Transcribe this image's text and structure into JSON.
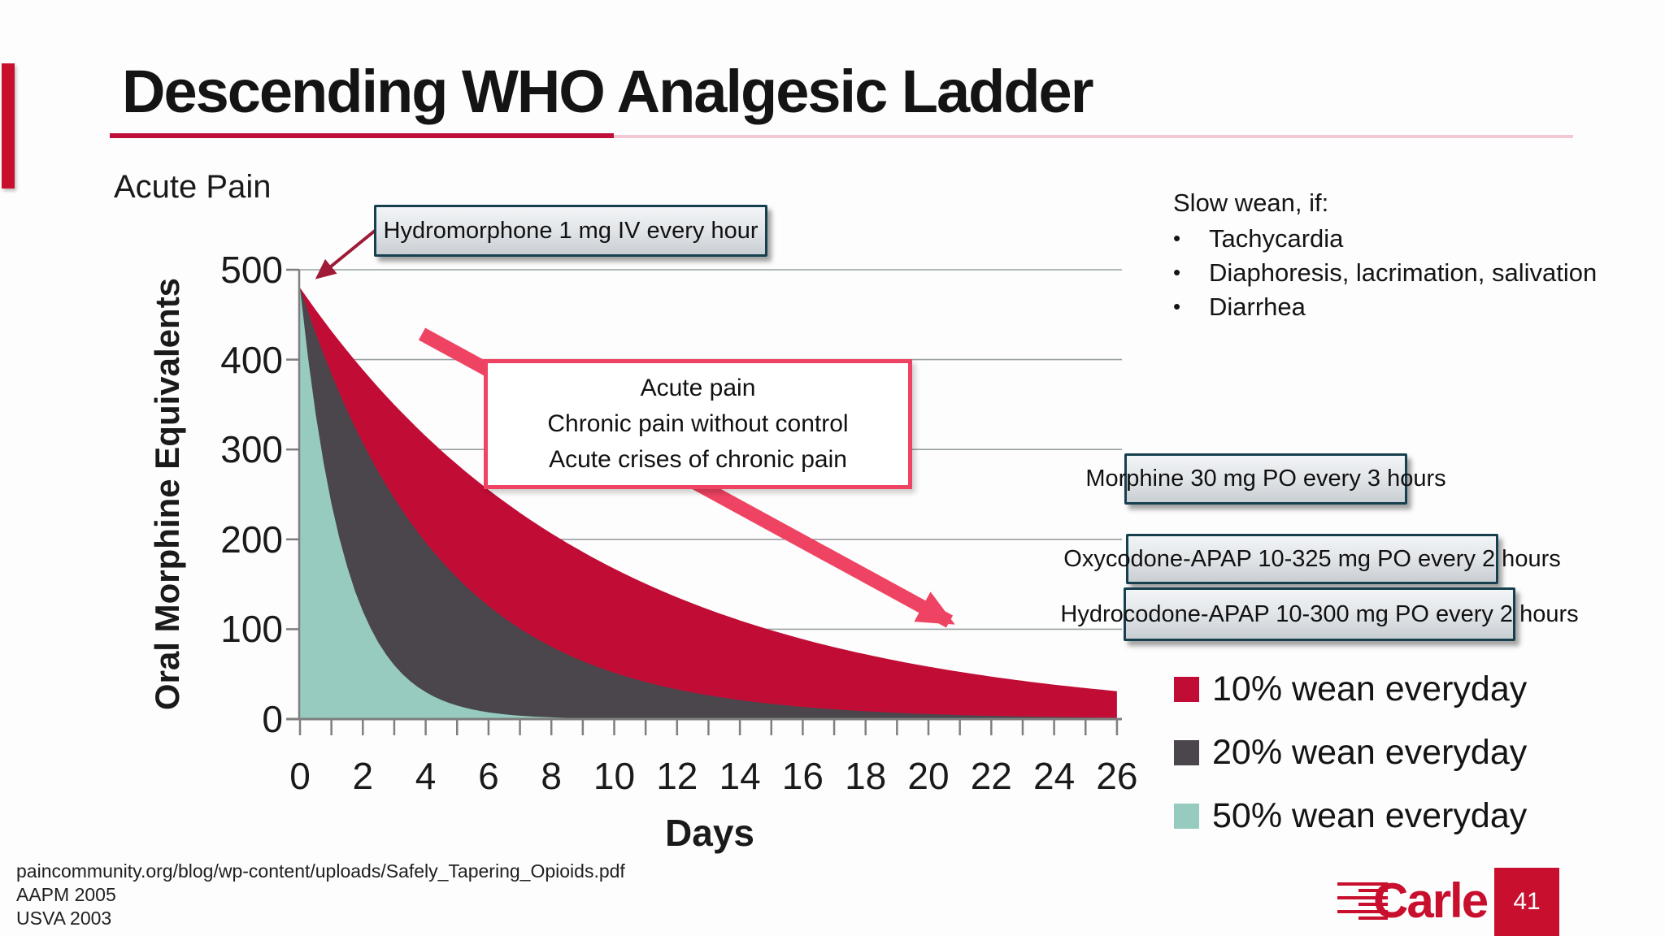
{
  "slide": {
    "title": "Descending WHO Analgesic Ladder",
    "section_label": "Acute Pain",
    "page_number": "41",
    "logo_text": "Carle",
    "citations": [
      "paincommunity.org/blog/wp-content/uploads/Safely_Tapering_Opioids.pdf",
      "AAPM 2005",
      "USVA 2003"
    ]
  },
  "slow_wean": {
    "heading": "Slow wean, if:",
    "items": [
      "Tachycardia",
      "Diaphoresis, lacrimation, salivation",
      "Diarrhea"
    ]
  },
  "callouts": {
    "hydromorphone": "Hydromorphone 1 mg IV every hour",
    "morphine": "Morphine 30 mg PO every 3 hours",
    "oxycodone": "Oxycodone-APAP 10-325 mg PO every 2 hours",
    "hydrocodone": "Hydrocodone-APAP 10-300 mg PO every 2 hours",
    "indication_lines": [
      "Acute pain",
      "Chronic pain without control",
      "Acute crises of chronic pain"
    ]
  },
  "colors": {
    "accent_crimson": "#C8102E",
    "underline_pink": "#F2C9D3",
    "series_red": "#C10D36",
    "series_grey": "#4A464C",
    "series_teal": "#97CBBF",
    "pink_arrow": "#EF4363",
    "dark_red_arrow": "#9E1A36",
    "callout_border": "#17404F",
    "gridline": "#9aa0a2",
    "axis": "#7f7f7f"
  },
  "chart_data": {
    "type": "area",
    "title": "",
    "xlabel": "Days",
    "ylabel": "Oral Morphine Equivalents",
    "xlim": [
      0,
      26
    ],
    "ylim": [
      0,
      500
    ],
    "x_ticks": [
      0,
      2,
      4,
      6,
      8,
      10,
      12,
      14,
      16,
      18,
      20,
      22,
      24,
      26
    ],
    "y_ticks": [
      0,
      100,
      200,
      300,
      400,
      500
    ],
    "grid": true,
    "legend_position": "right-bottom",
    "start_value": 480,
    "x": [
      0,
      1,
      2,
      3,
      4,
      5,
      6,
      7,
      8,
      9,
      10,
      11,
      12,
      13,
      14,
      15,
      16,
      17,
      18,
      19,
      20,
      21,
      22,
      23,
      24,
      25,
      26
    ],
    "series": [
      {
        "name": "10% wean everyday",
        "daily_factor": 0.9,
        "color": "#C10D36",
        "values": [
          480,
          432,
          389,
          350,
          315,
          283,
          255,
          230,
          207,
          186,
          167,
          151,
          136,
          122,
          110,
          99,
          89,
          80,
          72,
          65,
          58,
          52,
          47,
          43,
          38,
          34,
          31
        ]
      },
      {
        "name": "20% wean everyday",
        "daily_factor": 0.8,
        "color": "#4A464C",
        "values": [
          480,
          384,
          307,
          246,
          197,
          157,
          126,
          101,
          81,
          64,
          52,
          41,
          33,
          26,
          21,
          17,
          14,
          11,
          9,
          7,
          6,
          4,
          4,
          3,
          2,
          2,
          1
        ]
      },
      {
        "name": "50% wean everyday",
        "daily_factor": 0.5,
        "color": "#97CBBF",
        "values": [
          480,
          240,
          120,
          60,
          30,
          15,
          8,
          4,
          2,
          1,
          0,
          0,
          0,
          0,
          0,
          0,
          0,
          0,
          0,
          0,
          0,
          0,
          0,
          0,
          0,
          0,
          0
        ]
      }
    ]
  }
}
